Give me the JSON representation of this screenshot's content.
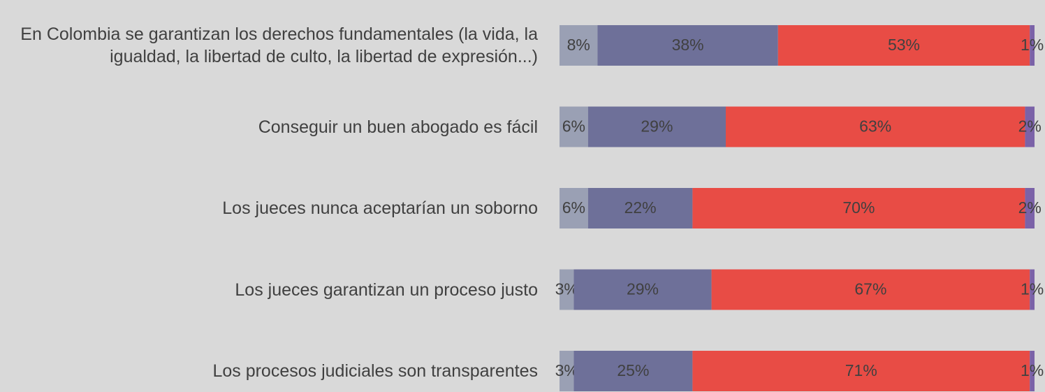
{
  "chart_data": {
    "type": "stacked-bar-horizontal",
    "categories": [
      "En Colombia se garantizan los derechos fundamentales (la vida, la igualdad, la libertad de culto, la libertad de expresión...)",
      "Conseguir un buen abogado es fácil",
      "Los jueces nunca aceptarían un soborno",
      "Los jueces garantizan un proceso justo",
      "Los procesos judiciales son transparentes"
    ],
    "series": [
      {
        "color": "#9aa0b4",
        "values": [
          8,
          6,
          6,
          3,
          3
        ],
        "value_labels": [
          "8%",
          "6%",
          "6%",
          "3%",
          "3%"
        ]
      },
      {
        "color": "#6e7099",
        "values": [
          38,
          29,
          22,
          29,
          25
        ],
        "value_labels": [
          "38%",
          "29%",
          "22%",
          "29%",
          "25%"
        ]
      },
      {
        "color": "#e84c45",
        "values": [
          53,
          63,
          70,
          67,
          71
        ],
        "value_labels": [
          "53%",
          "63%",
          "70%",
          "67%",
          "71%"
        ]
      },
      {
        "color": "#7b62a8",
        "values": [
          1,
          2,
          2,
          1,
          1
        ],
        "value_labels": [
          "1%",
          "2%",
          "2%",
          "1%",
          "1%"
        ]
      }
    ]
  }
}
